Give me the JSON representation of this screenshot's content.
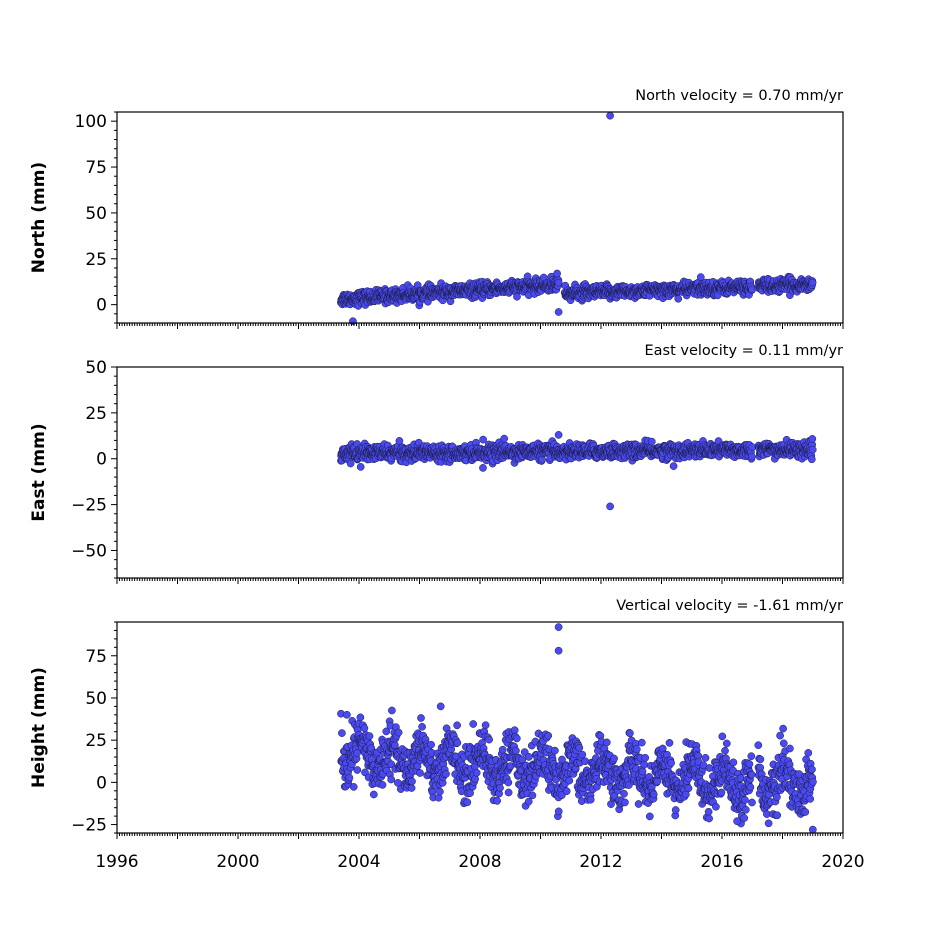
{
  "chart_data": [
    {
      "type": "scatter",
      "annotation": "North velocity = 0.70 mm/yr",
      "ylabel": "North (mm)",
      "xlim": [
        1996,
        2020
      ],
      "ylim": [
        -10,
        105
      ],
      "yticks": [
        0,
        25,
        50,
        75,
        100
      ],
      "xtick_labels_shown": false,
      "color": "#4a4af0",
      "trend": {
        "start_year": 2003.4,
        "end_year": 2019.0,
        "start_value": 3,
        "end_value": 11,
        "noise": 1.8
      },
      "segments": [
        {
          "x": [
            2003.4,
            2010.6
          ],
          "y_start": 3,
          "y_end": 11
        },
        {
          "x": [
            2010.8,
            2019.0
          ],
          "y_start": 6,
          "y_end": 11
        }
      ],
      "outliers": [
        {
          "x": 2012.3,
          "y": 103
        },
        {
          "x": 2010.6,
          "y": -4
        },
        {
          "x": 2010.55,
          "y": 17
        },
        {
          "x": 2015.3,
          "y": 15
        },
        {
          "x": 2003.8,
          "y": -9
        }
      ],
      "gaps": [
        [
          2017.0,
          2017.2
        ]
      ]
    },
    {
      "type": "scatter",
      "annotation": "East velocity = 0.11 mm/yr",
      "ylabel": "East (mm)",
      "xlim": [
        1996,
        2020
      ],
      "ylim": [
        -65,
        50
      ],
      "yticks": [
        -50,
        -25,
        0,
        25,
        50
      ],
      "xtick_labels_shown": false,
      "color": "#4a4af0",
      "trend": {
        "start_year": 2003.4,
        "end_year": 2019.0,
        "start_value": 3,
        "end_value": 5,
        "noise": 2.0
      },
      "outliers": [
        {
          "x": 2012.3,
          "y": -26
        },
        {
          "x": 2010.6,
          "y": 13
        },
        {
          "x": 2008.8,
          "y": 11
        },
        {
          "x": 2008.1,
          "y": -5
        },
        {
          "x": 2014.4,
          "y": -4
        }
      ],
      "gaps": [
        [
          2017.0,
          2017.2
        ]
      ]
    },
    {
      "type": "scatter",
      "annotation": "Vertical velocity = -1.61 mm/yr",
      "ylabel": "Height (mm)",
      "xlabel_ticks": [
        "1996",
        "2000",
        "2004",
        "2008",
        "2012",
        "2016",
        "2020"
      ],
      "xlim": [
        1996,
        2020
      ],
      "ylim": [
        -30,
        95
      ],
      "yticks": [
        -25,
        0,
        25,
        50,
        75
      ],
      "xtick_labels_shown": true,
      "color": "#4a4af0",
      "trend": {
        "start_year": 2003.4,
        "end_year": 2019.0,
        "start_value": 17,
        "end_value": -2,
        "noise": 7.5,
        "seasonal_amplitude": 9
      },
      "outliers": [
        {
          "x": 2010.6,
          "y": 92
        },
        {
          "x": 2010.6,
          "y": 78
        },
        {
          "x": 2006.7,
          "y": 45
        },
        {
          "x": 2003.6,
          "y": 40
        },
        {
          "x": 2017.2,
          "y": 22
        },
        {
          "x": 2019.0,
          "y": -28
        },
        {
          "x": 2016.5,
          "y": -23
        }
      ],
      "gaps": [
        [
          2017.0,
          2017.2
        ]
      ]
    }
  ]
}
